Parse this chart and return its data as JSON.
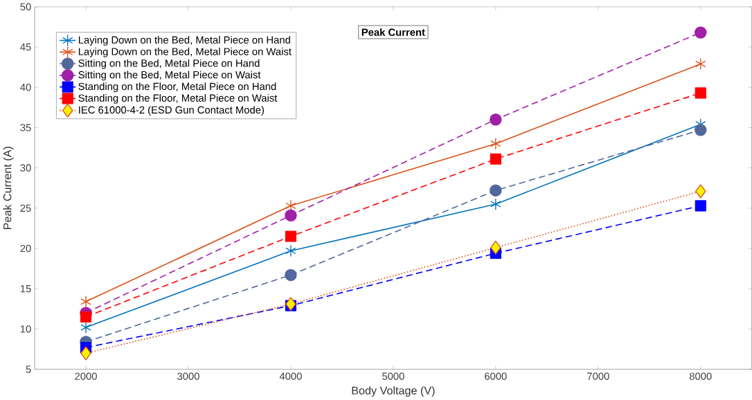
{
  "chart_data": {
    "type": "line",
    "title": "Peak Current",
    "xlabel": "Body Voltage (V)",
    "ylabel": "Peak Current (A)",
    "x": [
      2000,
      4000,
      6000,
      8000
    ],
    "series": [
      {
        "name": "Laying Down on the Bed, Metal Piece on Hand",
        "color": "#0072bd",
        "marker": "cross",
        "line_style": "solid",
        "values": [
          10.2,
          19.7,
          25.5,
          35.4
        ]
      },
      {
        "name": "Laying Down on the Bed, Metal Piece on Waist",
        "color": "#d95319",
        "marker": "cross",
        "line_style": "solid",
        "values": [
          13.4,
          25.3,
          33.0,
          42.9
        ]
      },
      {
        "name": "Sitting on the Bed, Metal Piece on Hand",
        "color": "#52689c",
        "marker": "circle",
        "line_style": "dashed",
        "values": [
          8.4,
          16.7,
          27.2,
          34.7
        ]
      },
      {
        "name": "Sitting on the Bed, Metal Piece on Waist",
        "color": "#a020a8",
        "marker": "circle",
        "line_style": "dashed",
        "values": [
          12.0,
          24.1,
          36.0,
          46.8
        ]
      },
      {
        "name": "Standing on the Floor, Metal Piece on Hand",
        "color": "#0000ff",
        "marker": "square",
        "line_style": "dashed",
        "values": [
          7.7,
          12.9,
          19.4,
          25.3
        ]
      },
      {
        "name": "Standing on the Floor, Metal Piece on Waist",
        "color": "#ff0000",
        "marker": "square",
        "line_style": "dashed",
        "values": [
          11.5,
          21.5,
          31.1,
          39.3
        ]
      },
      {
        "name": "IEC 61000-4-2 (ESD Gun Contact Mode)",
        "color": "#d95319",
        "marker": "diamond",
        "line_style": "dotted",
        "values": [
          7.0,
          13.1,
          20.1,
          27.1
        ]
      }
    ],
    "xlim": [
      1500,
      8500
    ],
    "ylim": [
      5,
      50
    ],
    "xticks": [
      2000,
      3000,
      4000,
      5000,
      6000,
      7000,
      8000
    ],
    "yticks": [
      5,
      10,
      15,
      20,
      25,
      30,
      35,
      40,
      45,
      50
    ],
    "grid": false,
    "legend": "top left"
  }
}
